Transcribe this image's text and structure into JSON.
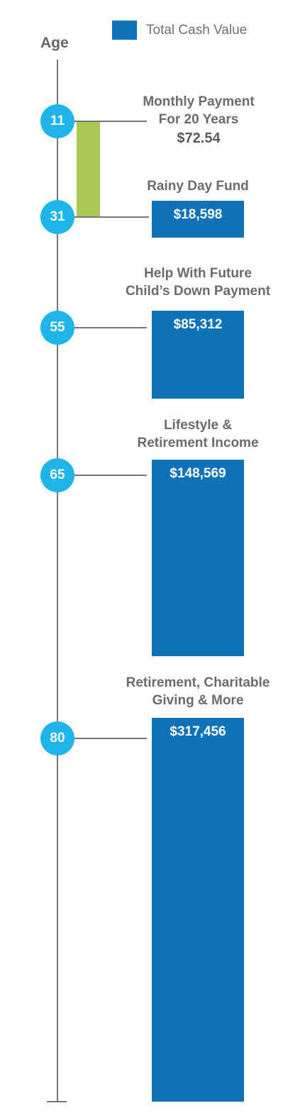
{
  "legend": {
    "label": "Total Cash Value",
    "color": "#0f72b8"
  },
  "axis_title": "Age",
  "payment": {
    "line1": "Monthly Payment",
    "line2": "For 20 Years",
    "amount": "$72.54",
    "start_age": 11,
    "end_age": 31,
    "color": "#a8c954"
  },
  "colors": {
    "bar": "#0f72b8",
    "circle": "#1fb4ea",
    "axis": "#777777",
    "label": "#6b6b6b"
  },
  "chart_data": {
    "type": "bar",
    "title": "",
    "xlabel": "Age",
    "ylabel": "",
    "series": [
      {
        "name": "Total Cash Value",
        "values": [
          18598,
          85312,
          148569,
          317456
        ]
      }
    ],
    "categories": [
      "31",
      "55",
      "65",
      "80"
    ],
    "ages": [
      11,
      31,
      55,
      65,
      80
    ],
    "milestones": [
      {
        "age": 31,
        "line1": "Rainy Day Fund",
        "line2": "",
        "value": 18598,
        "value_label": "$18,598"
      },
      {
        "age": 55,
        "line1": "Help With Future",
        "line2": "Child’s Down Payment",
        "value": 85312,
        "value_label": "$85,312"
      },
      {
        "age": 65,
        "line1": "Lifestyle &",
        "line2": "Retirement Income",
        "value": 148569,
        "value_label": "$148,569"
      },
      {
        "age": 80,
        "line1": "Retirement, Charitable",
        "line2": "Giving & More",
        "value": 317456,
        "value_label": "$317,456"
      }
    ]
  }
}
